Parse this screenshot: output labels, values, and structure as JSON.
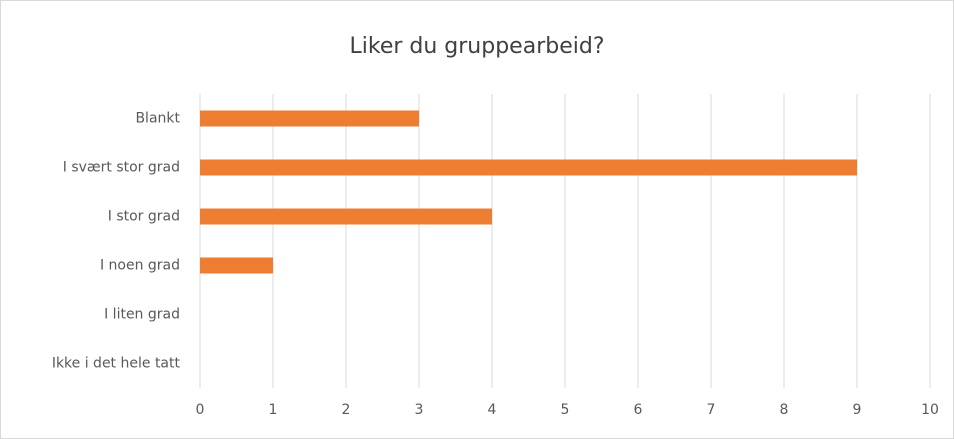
{
  "chart_data": {
    "type": "bar",
    "orientation": "horizontal",
    "title": "Liker du gruppearbeid?",
    "categories": [
      "Blankt",
      "I svært stor grad",
      "I stor grad",
      "I noen grad",
      "I liten grad",
      "Ikke i det hele tatt"
    ],
    "values": [
      3,
      9,
      4,
      1,
      0,
      0
    ],
    "color": "#ed7d31",
    "xlim": [
      0,
      10
    ],
    "xticks": [
      0,
      1,
      2,
      3,
      4,
      5,
      6,
      7,
      8,
      9,
      10
    ],
    "grid": true
  }
}
